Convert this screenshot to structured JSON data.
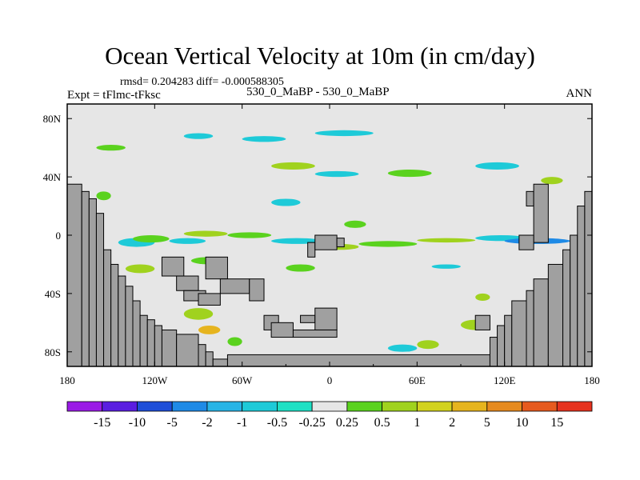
{
  "chart_data": {
    "type": "heatmap",
    "title": "Ocean Vertical Velocity at 10m (in cm/day)",
    "stats_line": "rmsd= 0.204283 diff= -0.000588305",
    "expt_label": "Expt = tFlmc-tFksc",
    "center_label": "530_0_MaBP - 530_0_MaBP",
    "season_label": "ANN",
    "projection": "cylindrical equidistant",
    "x_range": [
      -180,
      180
    ],
    "y_range": [
      -90,
      90
    ],
    "x_tick_values": [
      -180,
      -120,
      -60,
      0,
      60,
      120,
      180
    ],
    "x_tick_labels": [
      "180",
      "120W",
      "60W",
      "0",
      "60E",
      "120E",
      "180"
    ],
    "y_tick_values": [
      80,
      40,
      0,
      -40,
      -80
    ],
    "y_tick_labels": [
      "80N",
      "40N",
      "0",
      "40S",
      "80S"
    ],
    "land_color": "#a0a0a0",
    "ocean_neutral_color": "#e6e6e6",
    "colorbar": {
      "labels": [
        "-15",
        "-10",
        "-5",
        "-2",
        "-1",
        "-0.5",
        "-0.25",
        "0.25",
        "0.5",
        "1",
        "2",
        "5",
        "10",
        "15"
      ],
      "colors": [
        "#9a1ae6",
        "#5a1ee0",
        "#1e4ed8",
        "#1e8ae6",
        "#28b4e6",
        "#1ecad8",
        "#1ee0c4",
        "#e6e6e6",
        "#5ad21e",
        "#a0d21e",
        "#d2d21e",
        "#e6b41e",
        "#e68a1e",
        "#e65a1e",
        "#e6321e"
      ]
    },
    "land_cells": [
      [
        -180,
        -170,
        -90,
        35
      ],
      [
        -170,
        -165,
        -90,
        30
      ],
      [
        -165,
        -160,
        -90,
        25
      ],
      [
        -160,
        -155,
        -90,
        15
      ],
      [
        -155,
        -150,
        -90,
        -10
      ],
      [
        -150,
        -145,
        -90,
        -20
      ],
      [
        -145,
        -140,
        -90,
        -28
      ],
      [
        -140,
        -135,
        -90,
        -35
      ],
      [
        -135,
        -130,
        -90,
        -45
      ],
      [
        -130,
        -125,
        -90,
        -55
      ],
      [
        -125,
        -120,
        -90,
        -58
      ],
      [
        -120,
        -115,
        -90,
        -62
      ],
      [
        -115,
        -105,
        -90,
        -65
      ],
      [
        -105,
        -90,
        -90,
        -68
      ],
      [
        -90,
        -85,
        -90,
        -75
      ],
      [
        -85,
        -80,
        -90,
        -80
      ],
      [
        -80,
        -70,
        -90,
        -85
      ],
      [
        -70,
        110,
        -90,
        -82
      ],
      [
        110,
        115,
        -90,
        -70
      ],
      [
        115,
        120,
        -90,
        -62
      ],
      [
        120,
        125,
        -90,
        -55
      ],
      [
        125,
        135,
        -90,
        -45
      ],
      [
        135,
        140,
        -90,
        -38
      ],
      [
        140,
        150,
        -90,
        -30
      ],
      [
        150,
        160,
        -90,
        -20
      ],
      [
        160,
        165,
        -90,
        -10
      ],
      [
        165,
        170,
        -90,
        0
      ],
      [
        170,
        175,
        -90,
        20
      ],
      [
        175,
        180,
        -90,
        30
      ],
      [
        -115,
        -100,
        -28,
        -15
      ],
      [
        -105,
        -90,
        -38,
        -28
      ],
      [
        -100,
        -85,
        -45,
        -38
      ],
      [
        -90,
        -75,
        -48,
        -40
      ],
      [
        -85,
        -70,
        -30,
        -15
      ],
      [
        -75,
        -55,
        -40,
        -30
      ],
      [
        -55,
        -45,
        -45,
        -30
      ],
      [
        -15,
        -10,
        -15,
        -5
      ],
      [
        -10,
        5,
        -10,
        0
      ],
      [
        5,
        10,
        -8,
        -2
      ],
      [
        -45,
        -35,
        -65,
        -55
      ],
      [
        -40,
        -25,
        -70,
        -60
      ],
      [
        -25,
        5,
        -70,
        -65
      ],
      [
        -20,
        -10,
        -60,
        -55
      ],
      [
        -10,
        5,
        -65,
        -50
      ],
      [
        100,
        110,
        -65,
        -55
      ],
      [
        135,
        140,
        20,
        30
      ],
      [
        140,
        150,
        -5,
        35
      ],
      [
        130,
        140,
        -10,
        0
      ]
    ],
    "anomaly_patches": [
      [
        -145,
        -120,
        -2,
        -8,
        "#1ecad8"
      ],
      [
        -135,
        -110,
        0,
        -5,
        "#5ad21e"
      ],
      [
        -110,
        -85,
        -2,
        -6,
        "#1ecad8"
      ],
      [
        -100,
        -70,
        3,
        -1,
        "#a0d21e"
      ],
      [
        -70,
        -40,
        2,
        -2,
        "#5ad21e"
      ],
      [
        -40,
        -5,
        -2,
        -6,
        "#1ecad8"
      ],
      [
        -5,
        20,
        -6,
        -10,
        "#a0d21e"
      ],
      [
        20,
        60,
        -4,
        -8,
        "#5ad21e"
      ],
      [
        60,
        100,
        -2,
        -5,
        "#a0d21e"
      ],
      [
        100,
        135,
        0,
        -4,
        "#1ecad8"
      ],
      [
        120,
        165,
        -2,
        -6,
        "#1e8ae6"
      ],
      [
        -140,
        -120,
        -20,
        -26,
        "#a0d21e"
      ],
      [
        -95,
        -70,
        -15,
        -20,
        "#5ad21e"
      ],
      [
        -100,
        -80,
        -50,
        -58,
        "#a0d21e"
      ],
      [
        -90,
        -75,
        -62,
        -68,
        "#e6b41e"
      ],
      [
        -70,
        -60,
        -70,
        -76,
        "#5ad21e"
      ],
      [
        60,
        75,
        -72,
        -78,
        "#a0d21e"
      ],
      [
        90,
        110,
        -58,
        -65,
        "#a0d21e"
      ],
      [
        -160,
        -140,
        62,
        58,
        "#5ad21e"
      ],
      [
        -100,
        -80,
        70,
        66,
        "#1ecad8"
      ],
      [
        -60,
        -30,
        68,
        64,
        "#1ecad8"
      ],
      [
        -10,
        30,
        72,
        68,
        "#1ecad8"
      ],
      [
        -40,
        -10,
        50,
        45,
        "#a0d21e"
      ],
      [
        -10,
        20,
        44,
        40,
        "#1ecad8"
      ],
      [
        40,
        70,
        45,
        40,
        "#5ad21e"
      ],
      [
        100,
        130,
        50,
        45,
        "#1ecad8"
      ],
      [
        145,
        160,
        40,
        35,
        "#a0d21e"
      ],
      [
        -160,
        -150,
        30,
        24,
        "#5ad21e"
      ],
      [
        -40,
        -20,
        25,
        20,
        "#1ecad8"
      ],
      [
        10,
        25,
        10,
        5,
        "#5ad21e"
      ],
      [
        -150,
        -140,
        -40,
        -45,
        "#5ad21e"
      ],
      [
        100,
        110,
        -40,
        -45,
        "#a0d21e"
      ],
      [
        40,
        60,
        -75,
        -80,
        "#1ecad8"
      ],
      [
        -30,
        -10,
        -20,
        -25,
        "#5ad21e"
      ],
      [
        70,
        90,
        -20,
        -23,
        "#1ecad8"
      ],
      [
        170,
        180,
        10,
        5,
        "#5ad21e"
      ]
    ]
  }
}
